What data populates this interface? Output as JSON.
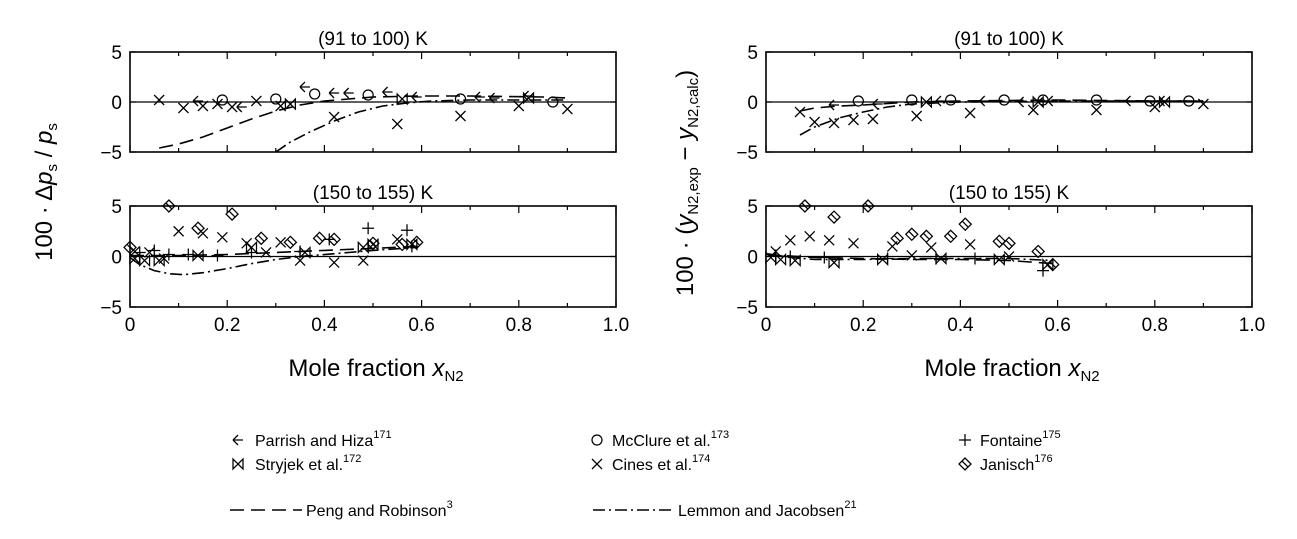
{
  "chart_data": [
    {
      "type": "scatter",
      "panel": "left-top",
      "title": "(91 to 100) K",
      "xlim": [
        0,
        1.0
      ],
      "ylim": [
        -5,
        5
      ],
      "yticks": [
        "5",
        "0",
        "−5"
      ],
      "series": [
        {
          "name": "Parrish and Hiza",
          "points": [
            [
              0.14,
              0.1
            ],
            [
              0.23,
              -0.5
            ],
            [
              0.36,
              1.5
            ],
            [
              0.42,
              0.9
            ],
            [
              0.45,
              0.9
            ],
            [
              0.53,
              1.0
            ],
            [
              0.59,
              0.5
            ],
            [
              0.72,
              0.5
            ],
            [
              0.75,
              0.4
            ],
            [
              0.82,
              0.6
            ]
          ]
        },
        {
          "name": "McClure et al.",
          "points": [
            [
              0.19,
              0.2
            ],
            [
              0.3,
              0.3
            ],
            [
              0.38,
              0.8
            ],
            [
              0.49,
              0.7
            ],
            [
              0.68,
              0.3
            ],
            [
              0.87,
              0.0
            ]
          ]
        },
        {
          "name": "Stryjek et al.",
          "points": [
            [
              0.33,
              -0.2
            ],
            [
              0.56,
              0.3
            ],
            [
              0.82,
              0.4
            ]
          ]
        },
        {
          "name": "Cines et al.",
          "points": [
            [
              0.06,
              0.2
            ],
            [
              0.11,
              -0.6
            ],
            [
              0.15,
              -0.4
            ],
            [
              0.18,
              -0.2
            ],
            [
              0.21,
              -0.5
            ],
            [
              0.26,
              0.1
            ],
            [
              0.31,
              -0.4
            ],
            [
              0.42,
              -1.5
            ],
            [
              0.55,
              -2.2
            ],
            [
              0.68,
              -1.4
            ],
            [
              0.8,
              -0.4
            ],
            [
              0.9,
              -0.7
            ]
          ]
        }
      ],
      "curves": [
        {
          "name": "Peng and Robinson",
          "points": [
            [
              0.06,
              -4.6
            ],
            [
              0.1,
              -4.2
            ],
            [
              0.15,
              -3.5
            ],
            [
              0.2,
              -2.6
            ],
            [
              0.25,
              -1.7
            ],
            [
              0.3,
              -0.9
            ],
            [
              0.35,
              -0.3
            ],
            [
              0.4,
              0.1
            ],
            [
              0.45,
              0.3
            ],
            [
              0.5,
              0.5
            ],
            [
              0.6,
              0.6
            ],
            [
              0.7,
              0.6
            ],
            [
              0.85,
              0.5
            ],
            [
              0.9,
              0.4
            ]
          ]
        },
        {
          "name": "Lemmon and Jacobsen",
          "points": [
            [
              0.3,
              -5
            ],
            [
              0.33,
              -4.0
            ],
            [
              0.37,
              -3.0
            ],
            [
              0.42,
              -1.9
            ],
            [
              0.47,
              -1.0
            ],
            [
              0.52,
              -0.4
            ],
            [
              0.57,
              -0.1
            ],
            [
              0.62,
              0.1
            ],
            [
              0.7,
              0.2
            ],
            [
              0.8,
              0.2
            ],
            [
              0.9,
              0.2
            ]
          ]
        }
      ]
    },
    {
      "type": "scatter",
      "panel": "left-bottom",
      "title": "(150 to 155) K",
      "xlim": [
        0,
        1.0
      ],
      "ylim": [
        -5,
        5
      ],
      "yticks": [
        "5",
        "0",
        "−5"
      ],
      "xlabel": "Mole fraction x_N2",
      "xticks": [
        "0",
        "0.2",
        "0.4",
        "0.6",
        "0.8",
        "1.0"
      ],
      "ylabel": "100 · Δp_s / p_s",
      "series": [
        {
          "name": "Fontaine",
          "points": [
            [
              0.02,
              0.4
            ],
            [
              0.05,
              0.6
            ],
            [
              0.08,
              0.2
            ],
            [
              0.12,
              0.2
            ],
            [
              0.18,
              0.1
            ],
            [
              0.25,
              0.4
            ],
            [
              0.35,
              0.5
            ],
            [
              0.41,
              1.7
            ],
            [
              0.49,
              2.8
            ],
            [
              0.57,
              2.6
            ],
            [
              0.58,
              1.0
            ]
          ]
        },
        {
          "name": "Stryjek et al.",
          "points": [
            [
              0.01,
              -0.2
            ],
            [
              0.03,
              -0.4
            ],
            [
              0.06,
              -0.4
            ],
            [
              0.14,
              0.1
            ],
            [
              0.25,
              0.9
            ],
            [
              0.36,
              0.4
            ],
            [
              0.48,
              0.9
            ],
            [
              0.5,
              1.2
            ],
            [
              0.58,
              1.2
            ]
          ]
        },
        {
          "name": "Cines et al.",
          "points": [
            [
              0.01,
              0.5
            ],
            [
              0.04,
              0.4
            ],
            [
              0.07,
              -0.2
            ],
            [
              0.1,
              2.5
            ],
            [
              0.15,
              2.3
            ],
            [
              0.19,
              1.9
            ],
            [
              0.24,
              1.3
            ],
            [
              0.28,
              0.4
            ],
            [
              0.31,
              1.4
            ],
            [
              0.35,
              -0.4
            ],
            [
              0.42,
              -0.6
            ],
            [
              0.48,
              -0.4
            ],
            [
              0.55,
              1.7
            ]
          ]
        },
        {
          "name": "Janisch",
          "points": [
            [
              0.0,
              0.9
            ],
            [
              0.08,
              5.0
            ],
            [
              0.14,
              2.8
            ],
            [
              0.21,
              4.2
            ],
            [
              0.27,
              1.8
            ],
            [
              0.33,
              1.4
            ],
            [
              0.39,
              1.8
            ],
            [
              0.42,
              1.7
            ],
            [
              0.5,
              1.3
            ],
            [
              0.56,
              1.2
            ],
            [
              0.59,
              1.4
            ]
          ]
        }
      ],
      "curves": [
        {
          "name": "Peng and Robinson",
          "points": [
            [
              0.0,
              0.1
            ],
            [
              0.1,
              0.1
            ],
            [
              0.2,
              0.2
            ],
            [
              0.3,
              0.4
            ],
            [
              0.4,
              0.6
            ],
            [
              0.5,
              0.8
            ],
            [
              0.59,
              1.0
            ]
          ]
        },
        {
          "name": "Lemmon and Jacobsen",
          "points": [
            [
              0.0,
              -0.1
            ],
            [
              0.02,
              -0.8
            ],
            [
              0.05,
              -1.4
            ],
            [
              0.08,
              -1.7
            ],
            [
              0.11,
              -1.8
            ],
            [
              0.15,
              -1.6
            ],
            [
              0.2,
              -1.2
            ],
            [
              0.25,
              -0.7
            ],
            [
              0.3,
              -0.3
            ],
            [
              0.35,
              0.0
            ],
            [
              0.45,
              0.4
            ],
            [
              0.5,
              0.6
            ],
            [
              0.59,
              0.9
            ]
          ]
        }
      ]
    },
    {
      "type": "scatter",
      "panel": "right-top",
      "title": "(91 to 100) K",
      "xlim": [
        0,
        1.0
      ],
      "ylim": [
        -5,
        5
      ],
      "yticks": [
        "5",
        "0",
        "−5"
      ],
      "series": [
        {
          "name": "Parrish and Hiza",
          "points": [
            [
              0.14,
              -0.3
            ],
            [
              0.23,
              -0.2
            ],
            [
              0.36,
              0.1
            ],
            [
              0.45,
              0.1
            ],
            [
              0.53,
              0.0
            ],
            [
              0.59,
              0.1
            ],
            [
              0.75,
              0.1
            ],
            [
              0.82,
              0.1
            ]
          ]
        },
        {
          "name": "McClure et al.",
          "points": [
            [
              0.19,
              0.1
            ],
            [
              0.3,
              0.2
            ],
            [
              0.38,
              0.2
            ],
            [
              0.49,
              0.2
            ],
            [
              0.57,
              0.2
            ],
            [
              0.68,
              0.2
            ],
            [
              0.79,
              0.1
            ],
            [
              0.87,
              0.1
            ]
          ]
        },
        {
          "name": "Stryjek et al.",
          "points": [
            [
              0.33,
              0.0
            ],
            [
              0.56,
              0.0
            ],
            [
              0.82,
              0.0
            ]
          ]
        },
        {
          "name": "Cines et al.",
          "points": [
            [
              0.07,
              -1.0
            ],
            [
              0.1,
              -2.0
            ],
            [
              0.14,
              -2.1
            ],
            [
              0.18,
              -1.8
            ],
            [
              0.22,
              -1.7
            ],
            [
              0.31,
              -1.4
            ],
            [
              0.42,
              -1.1
            ],
            [
              0.55,
              -0.8
            ],
            [
              0.68,
              -0.8
            ],
            [
              0.8,
              -0.5
            ],
            [
              0.9,
              -0.2
            ]
          ]
        }
      ],
      "curves": [
        {
          "name": "Peng and Robinson",
          "points": [
            [
              0.07,
              -0.9
            ],
            [
              0.1,
              -0.6
            ],
            [
              0.15,
              -0.4
            ],
            [
              0.2,
              -0.3
            ],
            [
              0.3,
              0.0
            ],
            [
              0.4,
              0.1
            ],
            [
              0.6,
              0.2
            ],
            [
              0.8,
              0.1
            ],
            [
              0.9,
              0.1
            ]
          ]
        },
        {
          "name": "Lemmon and Jacobsen",
          "points": [
            [
              0.07,
              -3.3
            ],
            [
              0.1,
              -2.5
            ],
            [
              0.15,
              -1.6
            ],
            [
              0.2,
              -1.0
            ],
            [
              0.25,
              -0.5
            ],
            [
              0.3,
              -0.2
            ],
            [
              0.4,
              0.0
            ],
            [
              0.6,
              0.1
            ],
            [
              0.9,
              0.1
            ]
          ]
        }
      ]
    },
    {
      "type": "scatter",
      "panel": "right-bottom",
      "title": "(150 to 155) K",
      "xlim": [
        0,
        1.0
      ],
      "ylim": [
        -5,
        5
      ],
      "yticks": [
        "5",
        "0",
        "−5"
      ],
      "xlabel": "Mole fraction x_N2",
      "xticks": [
        "0",
        "0.2",
        "0.4",
        "0.6",
        "0.8",
        "1.0"
      ],
      "ylabel": "100 · (y_N2,exp − y_N2,calc)",
      "series": [
        {
          "name": "Fontaine",
          "points": [
            [
              0.02,
              0.1
            ],
            [
              0.05,
              0.0
            ],
            [
              0.12,
              -0.1
            ],
            [
              0.25,
              -0.2
            ],
            [
              0.35,
              -0.2
            ],
            [
              0.43,
              -0.2
            ],
            [
              0.57,
              -1.4
            ]
          ]
        },
        {
          "name": "Stryjek et al.",
          "points": [
            [
              0.01,
              -0.1
            ],
            [
              0.03,
              -0.3
            ],
            [
              0.06,
              -0.4
            ],
            [
              0.14,
              -0.6
            ],
            [
              0.24,
              -0.3
            ],
            [
              0.36,
              -0.2
            ],
            [
              0.48,
              -0.3
            ],
            [
              0.58,
              -0.8
            ]
          ]
        },
        {
          "name": "Cines et al.",
          "points": [
            [
              0.02,
              0.5
            ],
            [
              0.05,
              1.6
            ],
            [
              0.09,
              2.0
            ],
            [
              0.13,
              1.6
            ],
            [
              0.18,
              1.3
            ],
            [
              0.26,
              1.0
            ],
            [
              0.3,
              0.1
            ],
            [
              0.34,
              0.9
            ],
            [
              0.42,
              1.2
            ],
            [
              0.5,
              0.0
            ]
          ]
        },
        {
          "name": "Janisch",
          "points": [
            [
              0.08,
              5.0
            ],
            [
              0.14,
              3.9
            ],
            [
              0.21,
              5.0
            ],
            [
              0.27,
              1.8
            ],
            [
              0.3,
              2.2
            ],
            [
              0.33,
              2.0
            ],
            [
              0.38,
              2.0
            ],
            [
              0.41,
              3.2
            ],
            [
              0.48,
              1.5
            ],
            [
              0.5,
              1.3
            ],
            [
              0.56,
              0.5
            ],
            [
              0.59,
              -0.8
            ]
          ]
        }
      ],
      "curves": [
        {
          "name": "Peng and Robinson",
          "points": [
            [
              0.0,
              0.2
            ],
            [
              0.1,
              -0.1
            ],
            [
              0.2,
              -0.2
            ],
            [
              0.3,
              -0.3
            ],
            [
              0.4,
              -0.3
            ],
            [
              0.5,
              -0.4
            ],
            [
              0.59,
              -0.7
            ]
          ]
        },
        {
          "name": "Lemmon and Jacobsen",
          "points": [
            [
              0.0,
              0.3
            ],
            [
              0.05,
              -0.1
            ],
            [
              0.1,
              -0.3
            ],
            [
              0.2,
              -0.3
            ],
            [
              0.3,
              -0.2
            ],
            [
              0.4,
              -0.2
            ],
            [
              0.5,
              -0.2
            ],
            [
              0.59,
              -0.4
            ]
          ]
        }
      ]
    }
  ],
  "legend": {
    "items": [
      {
        "name": "Parrish and Hiza",
        "ref": "171",
        "marker": "arrow-left"
      },
      {
        "name": "McClure et al.",
        "ref": "173",
        "marker": "circle"
      },
      {
        "name": "Fontaine",
        "ref": "175",
        "marker": "plus"
      },
      {
        "name": "Stryjek et al.",
        "ref": "172",
        "marker": "bowtie"
      },
      {
        "name": "Cines et al.",
        "ref": "174",
        "marker": "cross"
      },
      {
        "name": "Janisch",
        "ref": "176",
        "marker": "diamond"
      },
      {
        "name": "Peng and Robinson",
        "ref": "3",
        "line": "dashed"
      },
      {
        "name": "Lemmon and Jacobsen",
        "ref": "21",
        "line": "dashdot"
      }
    ]
  },
  "labels": {
    "left_ylabel_prefix": "100 · Δ",
    "left_ylabel_p": "p",
    "left_ylabel_s": "s",
    "left_ylabel_slash": " / ",
    "right_ylabel_prefix": "100 · (",
    "right_ylabel_y": "y",
    "right_ylabel_sub1": "N2,exp",
    "right_ylabel_minus": " − ",
    "right_ylabel_sub2": "N2,calc",
    "right_ylabel_close": ")",
    "xlabel_prefix": "Mole fraction ",
    "xlabel_x": "x",
    "xlabel_sub": "N2"
  }
}
